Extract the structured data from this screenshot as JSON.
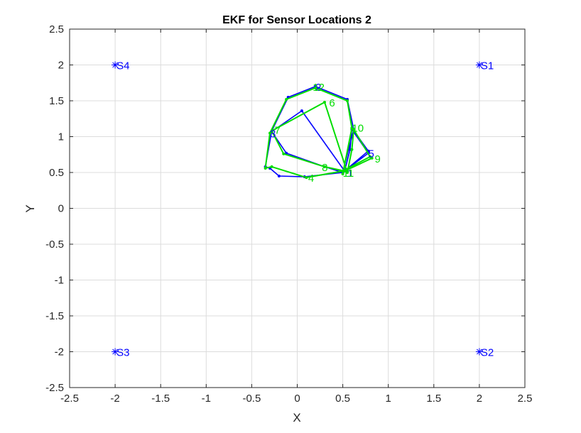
{
  "chart_data": {
    "type": "line",
    "title": "EKF for Sensor Locations 2",
    "xlabel": "X",
    "ylabel": "Y",
    "xlim": [
      -2.5,
      2.5
    ],
    "ylim": [
      -2.5,
      2.5
    ],
    "grid": true,
    "x_ticks": [
      "-2.5",
      "-2",
      "-1.5",
      "-1",
      "-0.5",
      "0",
      "0.5",
      "1",
      "1.5",
      "2",
      "2.5"
    ],
    "y_ticks": [
      "-2.5",
      "-2",
      "-1.5",
      "-1",
      "-0.5",
      "0",
      "0.5",
      "1",
      "1.5",
      "2",
      "2.5"
    ],
    "sensors": [
      {
        "label": "S1",
        "x": 2,
        "y": 2
      },
      {
        "label": "S2",
        "x": 2,
        "y": -2
      },
      {
        "label": "S3",
        "x": -2,
        "y": -2
      },
      {
        "label": "S4",
        "x": -2,
        "y": 2
      }
    ],
    "series": [
      {
        "color": "#0000ff",
        "x": [
          0.5,
          0.62,
          0.55,
          0.2,
          -0.1,
          -0.28,
          -0.35,
          -0.3,
          -0.2,
          0.08,
          0.5,
          0.78,
          0.6,
          0.58,
          0.52,
          0.05,
          -0.28,
          -0.12,
          0.3,
          0.5,
          0.78,
          0.6
        ],
        "y": [
          0.5,
          1.1,
          1.52,
          1.7,
          1.55,
          1.08,
          0.58,
          0.56,
          0.45,
          0.44,
          0.5,
          0.8,
          1.12,
          0.82,
          0.52,
          1.36,
          1.07,
          0.77,
          0.58,
          0.5,
          0.77,
          1.1
        ]
      },
      {
        "color": "#00dd00",
        "x": [
          0.5,
          0.6,
          0.55,
          0.2,
          -0.12,
          -0.3,
          -0.35,
          -0.28,
          0.1,
          0.5,
          0.8,
          0.62,
          0.6,
          0.55,
          0.3,
          -0.28,
          -0.15,
          0.3,
          0.52,
          0.82
        ],
        "y": [
          0.48,
          1.12,
          1.5,
          1.68,
          1.52,
          1.05,
          0.56,
          0.58,
          0.43,
          0.52,
          0.72,
          1.1,
          0.82,
          0.5,
          1.48,
          1.08,
          0.76,
          0.58,
          0.52,
          0.7
        ]
      }
    ],
    "step_labels": [
      {
        "text": "1",
        "x": 0.55,
        "y": 0.5,
        "color": "#0000ff"
      },
      {
        "text": "11",
        "x": 0.5,
        "y": 0.5,
        "color": "#00dd00"
      },
      {
        "text": "2",
        "x": 0.2,
        "y": 1.7,
        "color": "#0000ff"
      },
      {
        "text": "12",
        "x": 0.17,
        "y": 1.7,
        "color": "#00dd00"
      },
      {
        "text": "3",
        "x": -0.3,
        "y": 1.05,
        "color": "#0000ff"
      },
      {
        "text": "7",
        "x": -0.25,
        "y": 1.1,
        "color": "#00dd00"
      },
      {
        "text": "4",
        "x": 0.12,
        "y": 0.43,
        "color": "#00dd00"
      },
      {
        "text": "5",
        "x": 0.78,
        "y": 0.77,
        "color": "#0000ff"
      },
      {
        "text": "9",
        "x": 0.85,
        "y": 0.7,
        "color": "#00dd00"
      },
      {
        "text": "6",
        "x": 0.35,
        "y": 1.48,
        "color": "#00dd00"
      },
      {
        "text": "8",
        "x": 0.27,
        "y": 0.58,
        "color": "#00dd00"
      },
      {
        "text": "10",
        "x": 0.6,
        "y": 1.13,
        "color": "#00dd00"
      }
    ]
  }
}
